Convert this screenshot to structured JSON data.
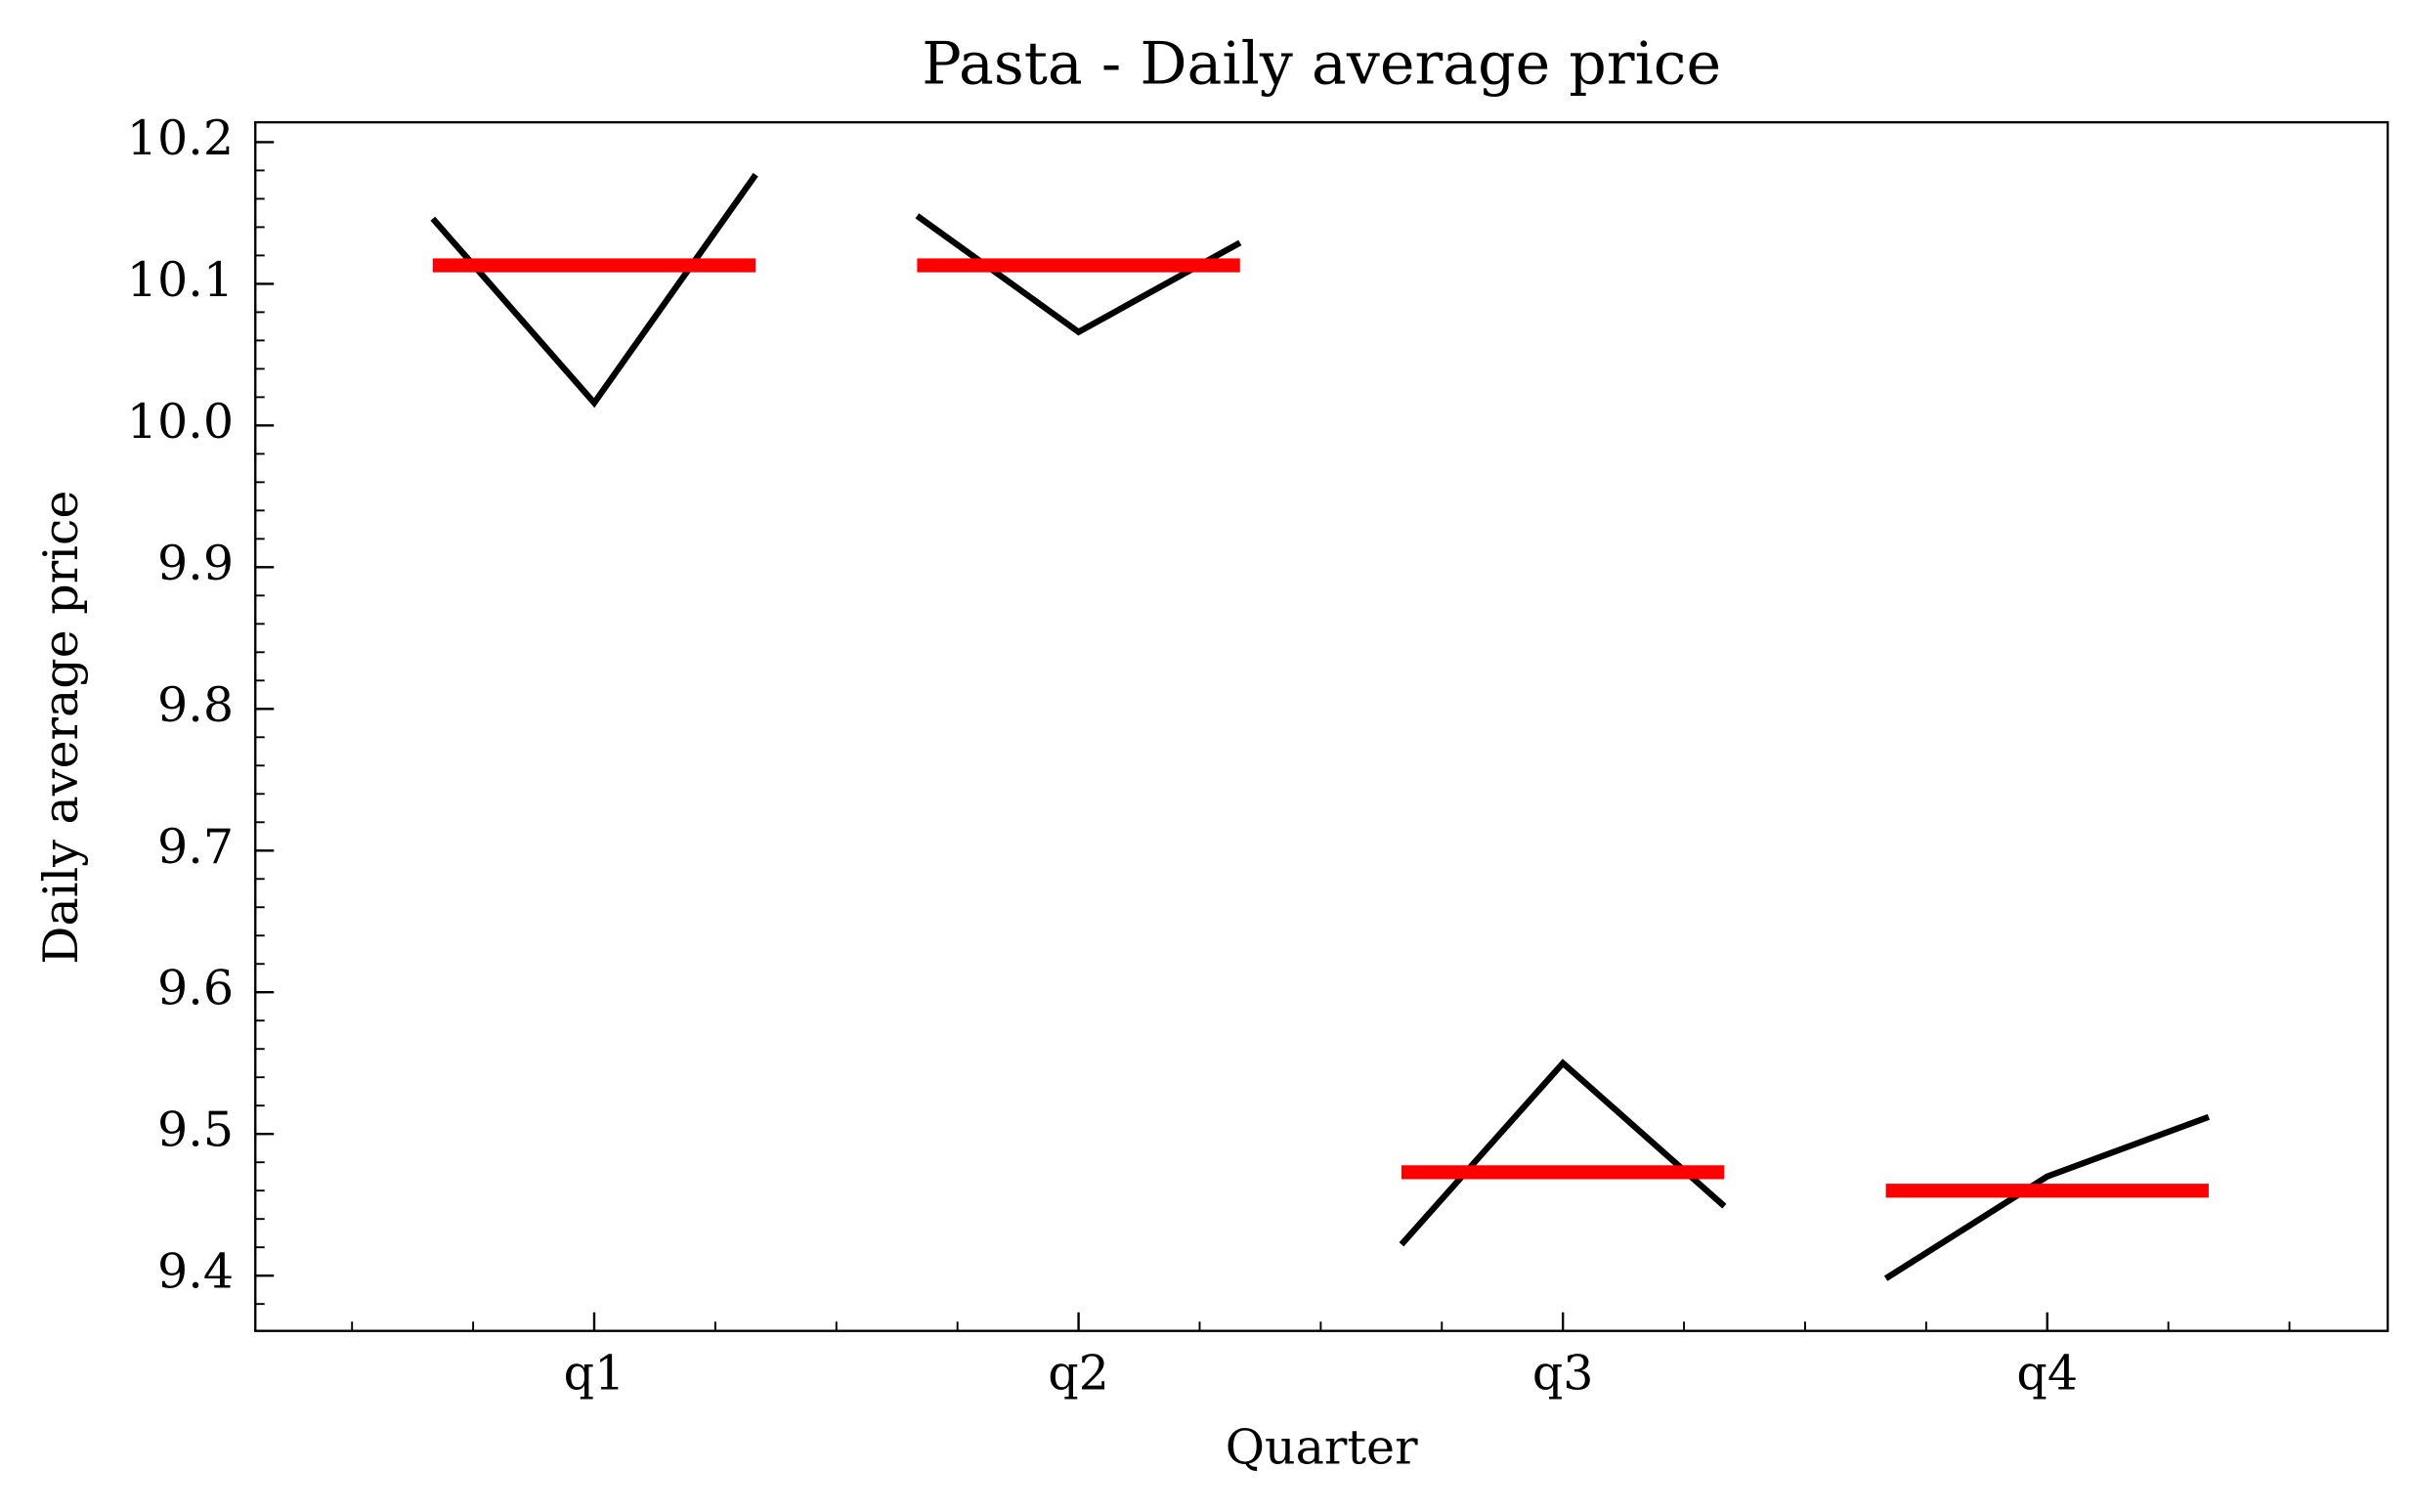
{
  "chart_data": {
    "type": "line",
    "title": "Pasta - Daily average price",
    "xlabel": "Quarter",
    "ylabel": "Daily average price",
    "categories": [
      "q1",
      "q2",
      "q3",
      "q4"
    ],
    "values": [
      [
        10.146,
        10.016,
        10.177
      ],
      [
        10.148,
        10.066,
        10.129
      ],
      [
        9.422,
        9.55,
        9.449
      ],
      [
        9.398,
        9.47,
        9.512
      ]
    ],
    "means": [
      10.113,
      10.113,
      9.473,
      9.46
    ],
    "line_color": "#000000",
    "mean_color": "#ff0000",
    "ylim": [
      9.361,
      10.214
    ],
    "yticks": [
      9.4,
      9.5,
      9.6,
      9.7,
      9.8,
      9.9,
      {
        "value": 10,
        "label": "10.0"
      },
      10.1,
      10.2
    ]
  }
}
